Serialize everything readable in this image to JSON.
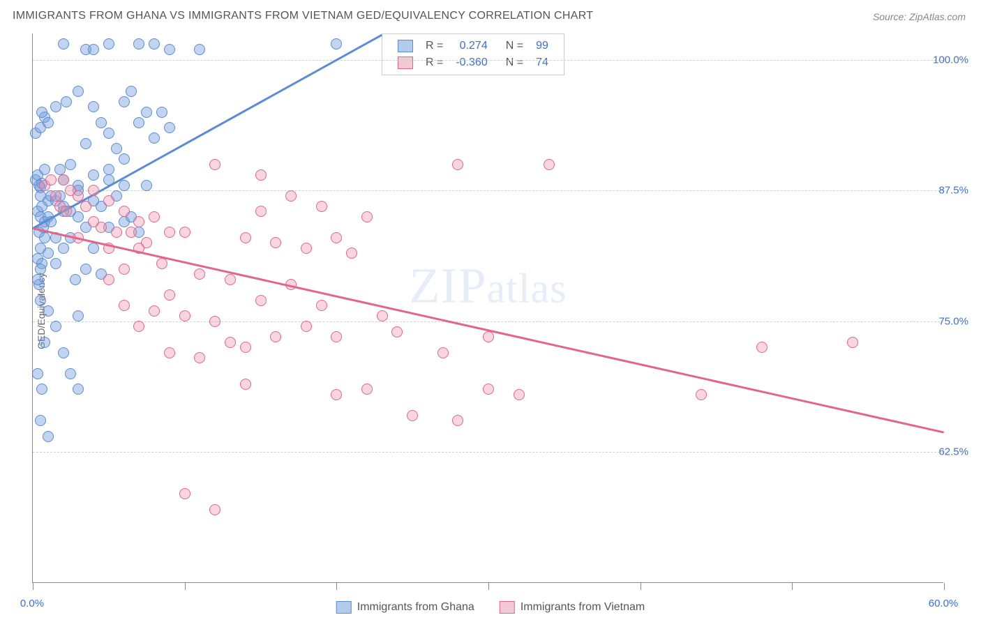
{
  "chart": {
    "type": "scatter",
    "title": "IMMIGRANTS FROM GHANA VS IMMIGRANTS FROM VIETNAM GED/EQUIVALENCY CORRELATION CHART",
    "source": "Source: ZipAtlas.com",
    "ylabel": "GED/Equivalency",
    "watermark_zip": "ZIP",
    "watermark_atlas": "atlas",
    "plot_bg": "#ffffff",
    "grid_color": "#d0d0d0",
    "axis_color": "#888888",
    "tick_label_color": "#3b6fd6",
    "title_color": "#555555",
    "xlim": [
      0,
      60
    ],
    "ylim": [
      50,
      102.5
    ],
    "x_ticks": [
      0,
      10,
      20,
      30,
      40,
      50,
      60
    ],
    "x_tick_labels": {
      "0": "0.0%",
      "60": "60.0%"
    },
    "y_grid": [
      62.5,
      75.0,
      87.5,
      100.0
    ],
    "y_tick_labels": [
      "62.5%",
      "75.0%",
      "87.5%",
      "100.0%"
    ],
    "series": [
      {
        "name": "Immigrants from Ghana",
        "color_fill": "rgba(120,160,220,0.45)",
        "color_stroke": "#5a8dd6",
        "swatch_fill": "#b3cbeb",
        "swatch_stroke": "#5a8dd6",
        "R": "0.274",
        "N": "99",
        "points": [
          [
            0.2,
            88.5
          ],
          [
            0.3,
            89
          ],
          [
            0.5,
            87.8
          ],
          [
            0.6,
            88.2
          ],
          [
            0.4,
            88
          ],
          [
            0.8,
            89.5
          ],
          [
            0.5,
            87
          ],
          [
            1,
            86.5
          ],
          [
            0.3,
            85.5
          ],
          [
            0.6,
            86
          ],
          [
            1.2,
            87
          ],
          [
            0.5,
            85
          ],
          [
            0.8,
            84.5
          ],
          [
            1.5,
            86.5
          ],
          [
            2,
            88.5
          ],
          [
            0.4,
            83.5
          ],
          [
            0.7,
            84
          ],
          [
            1,
            85
          ],
          [
            0.5,
            82
          ],
          [
            0.3,
            81
          ],
          [
            0.8,
            83
          ],
          [
            1.2,
            84.5
          ],
          [
            2.5,
            85.5
          ],
          [
            1.8,
            87
          ],
          [
            0.6,
            80.5
          ],
          [
            0.4,
            78.5
          ],
          [
            1,
            81.5
          ],
          [
            1.5,
            83
          ],
          [
            0.3,
            79
          ],
          [
            0.5,
            80
          ],
          [
            2,
            86
          ],
          [
            3,
            88
          ],
          [
            0.2,
            93
          ],
          [
            0.5,
            93.5
          ],
          [
            0.8,
            94.5
          ],
          [
            1.5,
            95.5
          ],
          [
            2.2,
            96
          ],
          [
            1,
            94
          ],
          [
            0.6,
            95
          ],
          [
            3,
            97
          ],
          [
            4,
            95.5
          ],
          [
            5,
            93
          ],
          [
            5.5,
            91.5
          ],
          [
            2.5,
            90
          ],
          [
            3.5,
            92
          ],
          [
            4.5,
            94
          ],
          [
            6,
            96
          ],
          [
            1.8,
            89.5
          ],
          [
            7,
            101.5
          ],
          [
            8,
            101.5
          ],
          [
            9,
            101
          ],
          [
            3.5,
            101
          ],
          [
            2,
            101.5
          ],
          [
            4,
            101
          ],
          [
            5,
            101.5
          ],
          [
            11,
            101
          ],
          [
            20,
            101.5
          ],
          [
            6.5,
            97
          ],
          [
            7.5,
            95
          ],
          [
            5,
            89.5
          ],
          [
            4,
            89
          ],
          [
            6,
            90.5
          ],
          [
            7,
            94
          ],
          [
            8,
            92.5
          ],
          [
            9,
            93.5
          ],
          [
            8.5,
            95
          ],
          [
            6,
            88
          ],
          [
            5.5,
            87
          ],
          [
            4.5,
            86
          ],
          [
            3,
            85
          ],
          [
            3.5,
            84
          ],
          [
            2.5,
            83
          ],
          [
            2,
            82
          ],
          [
            1.5,
            80.5
          ],
          [
            0.5,
            77
          ],
          [
            1,
            76
          ],
          [
            1.5,
            74.5
          ],
          [
            0.8,
            73
          ],
          [
            2,
            72
          ],
          [
            3,
            75.5
          ],
          [
            0.3,
            70
          ],
          [
            0.6,
            68.5
          ],
          [
            3,
            68.5
          ],
          [
            2.5,
            70
          ],
          [
            0.5,
            65.5
          ],
          [
            1,
            64
          ],
          [
            5,
            84
          ],
          [
            6,
            84.5
          ],
          [
            7,
            83.5
          ],
          [
            4,
            82
          ],
          [
            3.5,
            80
          ],
          [
            2.8,
            79
          ],
          [
            4.5,
            79.5
          ],
          [
            6.5,
            85
          ],
          [
            5,
            88.5
          ],
          [
            7.5,
            88
          ],
          [
            4,
            86.5
          ],
          [
            3,
            87.5
          ],
          [
            2,
            85.5
          ]
        ],
        "regression": {
          "x1": 0,
          "y1": 84,
          "x2": 23,
          "y2": 102.5
        }
      },
      {
        "name": "Immigrants from Vietnam",
        "color_fill": "rgba(240,150,175,0.4)",
        "color_stroke": "#e2668c",
        "swatch_fill": "#f3c9d6",
        "swatch_stroke": "#e2668c",
        "R": "-0.360",
        "N": "74",
        "points": [
          [
            0.8,
            88
          ],
          [
            1.2,
            88.5
          ],
          [
            1.5,
            87
          ],
          [
            2,
            88.5
          ],
          [
            2.5,
            87.5
          ],
          [
            1.8,
            86
          ],
          [
            3,
            87
          ],
          [
            2.2,
            85.5
          ],
          [
            4,
            87.5
          ],
          [
            3.5,
            86
          ],
          [
            5,
            86.5
          ],
          [
            4.5,
            84
          ],
          [
            6,
            85.5
          ],
          [
            5.5,
            83.5
          ],
          [
            7,
            84.5
          ],
          [
            6.5,
            83.5
          ],
          [
            8,
            85
          ],
          [
            7.5,
            82.5
          ],
          [
            4,
            84.5
          ],
          [
            5,
            82
          ],
          [
            3,
            83
          ],
          [
            7,
            82
          ],
          [
            9,
            83.5
          ],
          [
            10,
            83.5
          ],
          [
            8.5,
            80.5
          ],
          [
            6,
            80
          ],
          [
            12,
            90
          ],
          [
            15,
            89
          ],
          [
            14,
            83
          ],
          [
            16,
            82.5
          ],
          [
            18,
            82
          ],
          [
            20,
            83
          ],
          [
            21,
            81.5
          ],
          [
            22,
            85
          ],
          [
            28,
            90
          ],
          [
            34,
            90
          ],
          [
            13,
            79
          ],
          [
            15,
            77
          ],
          [
            17,
            78.5
          ],
          [
            19,
            76.5
          ],
          [
            9,
            77.5
          ],
          [
            11,
            79.5
          ],
          [
            10,
            75.5
          ],
          [
            8,
            76
          ],
          [
            12,
            75
          ],
          [
            14,
            72.5
          ],
          [
            16,
            73.5
          ],
          [
            13,
            73
          ],
          [
            11,
            71.5
          ],
          [
            9,
            72
          ],
          [
            18,
            74.5
          ],
          [
            20,
            73.5
          ],
          [
            24,
            74
          ],
          [
            23,
            75.5
          ],
          [
            27,
            72
          ],
          [
            30,
            73.5
          ],
          [
            20,
            68
          ],
          [
            22,
            68.5
          ],
          [
            25,
            66
          ],
          [
            28,
            65.5
          ],
          [
            32,
            68
          ],
          [
            30,
            68.5
          ],
          [
            48,
            72.5
          ],
          [
            44,
            68
          ],
          [
            54,
            73
          ],
          [
            10,
            58.5
          ],
          [
            12,
            57
          ],
          [
            14,
            69
          ],
          [
            7,
            74.5
          ],
          [
            6,
            76.5
          ],
          [
            5,
            79
          ],
          [
            15,
            85.5
          ],
          [
            17,
            87
          ],
          [
            19,
            86
          ]
        ],
        "regression": {
          "x1": 0,
          "y1": 84,
          "x2": 60,
          "y2": 64.5
        }
      }
    ],
    "legend_stat_label_R": "R =",
    "legend_stat_label_N": "N =",
    "legend_value_color": "#3b6fd6"
  }
}
